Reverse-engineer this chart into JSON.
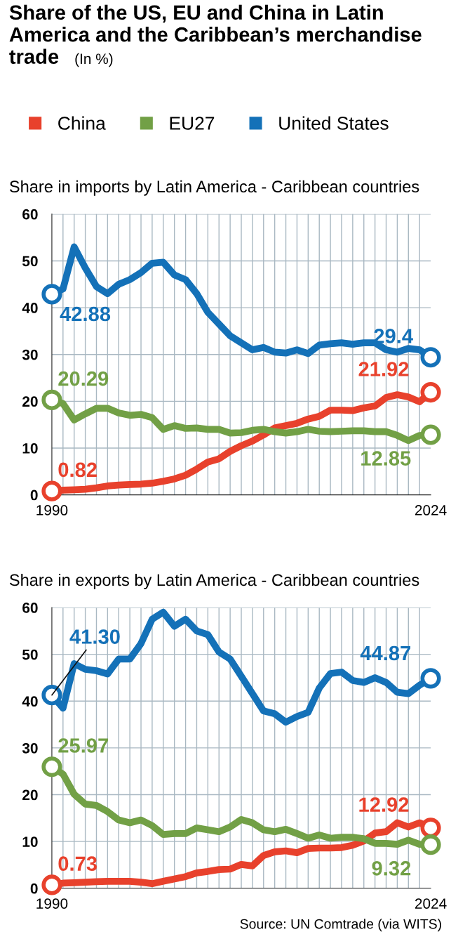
{
  "chart_data": [
    {
      "type": "line",
      "title": "Share of the US, EU and China in Latin America and the Caribbean’s merchandise trade",
      "subtitle": "(In %)",
      "legend": "top",
      "grid": true,
      "x": [
        1990,
        1991,
        1992,
        1993,
        1994,
        1995,
        1996,
        1997,
        1998,
        1999,
        2000,
        2001,
        2002,
        2003,
        2004,
        2005,
        2006,
        2007,
        2008,
        2009,
        2010,
        2011,
        2012,
        2013,
        2014,
        2015,
        2016,
        2017,
        2018,
        2019,
        2020,
        2021,
        2022,
        2023,
        2024
      ],
      "xlim": [
        1990,
        2024
      ],
      "xticks": [
        1990,
        2024
      ],
      "ylim": [
        0,
        60
      ],
      "yticks": [
        0,
        10,
        20,
        30,
        40,
        50,
        60
      ],
      "series": [
        {
          "name": "China",
          "color": "#e8412c",
          "values": [
            0.82,
            1.0,
            1.1,
            1.2,
            1.5,
            1.9,
            2.1,
            2.2,
            2.3,
            2.5,
            2.9,
            3.4,
            4.2,
            5.5,
            7.0,
            7.7,
            9.3,
            10.5,
            11.5,
            12.8,
            14.3,
            14.8,
            15.3,
            16.2,
            16.8,
            18.1,
            18.1,
            18.0,
            18.6,
            19.0,
            20.8,
            21.4,
            20.9,
            19.9,
            21.92
          ],
          "value_labels": [
            "0.82",
            null,
            null,
            null,
            null,
            null,
            null,
            null,
            null,
            null,
            null,
            null,
            null,
            null,
            null,
            null,
            null,
            null,
            null,
            null,
            null,
            null,
            null,
            null,
            null,
            null,
            null,
            null,
            null,
            null,
            null,
            null,
            null,
            null,
            "21.92"
          ]
        },
        {
          "name": "EU27",
          "color": "#72a046",
          "values": [
            20.29,
            19.5,
            16.0,
            17.3,
            18.5,
            18.5,
            17.5,
            17.0,
            17.2,
            16.5,
            14.0,
            14.8,
            14.2,
            14.3,
            14.0,
            14.0,
            13.2,
            13.3,
            13.8,
            14.0,
            13.5,
            13.2,
            13.5,
            14.0,
            13.6,
            13.5,
            13.6,
            13.7,
            13.7,
            13.5,
            13.5,
            12.7,
            11.6,
            12.7,
            12.85
          ],
          "value_labels": [
            "20.29",
            null,
            null,
            null,
            null,
            null,
            null,
            null,
            null,
            null,
            null,
            null,
            null,
            null,
            null,
            null,
            null,
            null,
            null,
            null,
            null,
            null,
            null,
            null,
            null,
            null,
            null,
            null,
            null,
            null,
            null,
            null,
            null,
            null,
            "12.85"
          ]
        },
        {
          "name": "United States",
          "color": "#1471b8",
          "values": [
            42.88,
            44.0,
            53.0,
            48.5,
            44.5,
            43.0,
            45.0,
            46.0,
            47.5,
            49.5,
            49.7,
            47.0,
            46.0,
            43.0,
            39.0,
            36.5,
            34.0,
            32.5,
            31.0,
            31.5,
            30.5,
            30.3,
            31.0,
            30.2,
            32.0,
            32.3,
            32.5,
            32.2,
            32.5,
            32.5,
            31.0,
            30.5,
            31.3,
            31.0,
            29.4
          ],
          "value_labels": [
            "42.88",
            null,
            null,
            null,
            null,
            null,
            null,
            null,
            null,
            null,
            null,
            null,
            null,
            null,
            null,
            null,
            null,
            null,
            null,
            null,
            null,
            null,
            null,
            null,
            null,
            null,
            null,
            null,
            null,
            null,
            null,
            null,
            null,
            null,
            "29.4"
          ]
        }
      ],
      "annotations": [
        "Share in imports by Latin America - Caribbean countries"
      ]
    },
    {
      "type": "line",
      "grid": true,
      "x": [
        1990,
        1991,
        1992,
        1993,
        1994,
        1995,
        1996,
        1997,
        1998,
        1999,
        2000,
        2001,
        2002,
        2003,
        2004,
        2005,
        2006,
        2007,
        2008,
        2009,
        2010,
        2011,
        2012,
        2013,
        2014,
        2015,
        2016,
        2017,
        2018,
        2019,
        2020,
        2021,
        2022,
        2023,
        2024
      ],
      "xlim": [
        1990,
        2024
      ],
      "xticks": [
        1990,
        2024
      ],
      "ylim": [
        0,
        60
      ],
      "yticks": [
        0,
        10,
        20,
        30,
        40,
        50,
        60
      ],
      "series": [
        {
          "color": "#e8412c",
          "values": [
            0.73,
            1.1,
            1.2,
            1.3,
            1.4,
            1.5,
            1.5,
            1.5,
            1.3,
            1.0,
            1.5,
            2.0,
            2.5,
            3.3,
            3.6,
            4.0,
            4.1,
            5.1,
            4.8,
            7.0,
            7.8,
            8.0,
            7.6,
            8.5,
            8.6,
            8.6,
            8.7,
            9.2,
            10.1,
            11.8,
            12.1,
            14.0,
            13.1,
            14.0,
            12.92
          ],
          "value_labels": [
            "0.73",
            null,
            null,
            null,
            null,
            null,
            null,
            null,
            null,
            null,
            null,
            null,
            null,
            null,
            null,
            null,
            null,
            null,
            null,
            null,
            null,
            null,
            null,
            null,
            null,
            null,
            null,
            null,
            null,
            null,
            null,
            null,
            null,
            null,
            "12.92"
          ]
        },
        {
          "color": "#72a046",
          "values": [
            25.97,
            24.4,
            20.1,
            18.0,
            17.7,
            16.4,
            14.6,
            14.0,
            14.6,
            13.4,
            11.5,
            11.7,
            11.7,
            12.9,
            12.5,
            12.1,
            13.1,
            14.7,
            14.0,
            12.5,
            12.1,
            12.6,
            11.7,
            10.7,
            11.4,
            10.7,
            10.9,
            10.9,
            10.6,
            9.6,
            9.6,
            9.4,
            10.3,
            9.4,
            9.32
          ],
          "value_labels": [
            "25.97",
            null,
            null,
            null,
            null,
            null,
            null,
            null,
            null,
            null,
            null,
            null,
            null,
            null,
            null,
            null,
            null,
            null,
            null,
            null,
            null,
            null,
            null,
            null,
            null,
            null,
            null,
            null,
            null,
            null,
            null,
            null,
            null,
            null,
            "9.32"
          ]
        },
        {
          "color": "#1471b8",
          "values": [
            41.3,
            38.5,
            48.0,
            46.8,
            46.5,
            45.8,
            49.0,
            49.0,
            52.3,
            57.5,
            59.0,
            56.0,
            57.5,
            55.0,
            54.2,
            50.5,
            49.0,
            45.3,
            41.6,
            37.9,
            37.3,
            35.5,
            36.7,
            37.6,
            42.8,
            45.9,
            46.2,
            44.4,
            44.0,
            45.0,
            44.0,
            41.9,
            41.6,
            43.4,
            44.87
          ],
          "value_labels": [
            "41.30",
            null,
            null,
            null,
            null,
            null,
            null,
            null,
            null,
            null,
            null,
            null,
            null,
            null,
            null,
            null,
            null,
            null,
            null,
            null,
            null,
            null,
            null,
            null,
            null,
            null,
            null,
            null,
            null,
            null,
            null,
            null,
            null,
            null,
            "44.87"
          ]
        }
      ],
      "annotations": [
        "Share in exports by Latin America - Caribbean countries",
        "Source: UN Comtrade (via WITS)"
      ]
    }
  ]
}
